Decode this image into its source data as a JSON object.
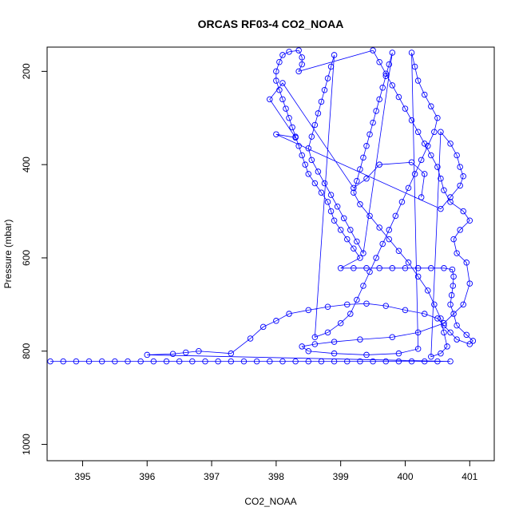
{
  "chart_data": {
    "type": "scatter",
    "title": "ORCAS RF03-4 CO2_NOAA",
    "xlabel": "CO2_NOAA",
    "ylabel": "Pressure (mbar)",
    "xlim": [
      394.45,
      401.38
    ],
    "ylim": [
      1035,
      148
    ],
    "y_reversed": true,
    "x_ticks": [
      "395",
      "396",
      "397",
      "398",
      "399",
      "400",
      "401"
    ],
    "y_ticks": [
      "200",
      "400",
      "600",
      "800",
      "1000"
    ],
    "color": "#0000ff",
    "marker": "open-circle",
    "connected_by_line": true,
    "grid": false,
    "series": [
      {
        "points": [
          [
            394.5,
            822
          ],
          [
            394.7,
            822
          ],
          [
            394.9,
            822
          ],
          [
            395.1,
            822
          ],
          [
            395.3,
            822
          ],
          [
            395.5,
            822
          ],
          [
            395.7,
            822
          ],
          [
            395.9,
            822
          ],
          [
            396.1,
            822
          ],
          [
            396.3,
            822
          ],
          [
            396.5,
            822
          ],
          [
            396.7,
            822
          ],
          [
            396.9,
            822
          ],
          [
            397.1,
            822
          ],
          [
            397.3,
            822
          ],
          [
            397.5,
            822
          ],
          [
            397.7,
            822
          ],
          [
            397.9,
            822
          ],
          [
            398.1,
            822
          ],
          [
            398.3,
            822
          ],
          [
            398.5,
            822
          ],
          [
            398.7,
            822
          ],
          [
            398.9,
            822
          ],
          [
            399.1,
            822
          ],
          [
            399.3,
            822
          ],
          [
            399.5,
            822
          ],
          [
            399.7,
            822
          ],
          [
            399.9,
            822
          ],
          [
            400.1,
            822
          ],
          [
            400.3,
            822
          ],
          [
            400.5,
            822
          ],
          [
            400.7,
            822
          ],
          [
            396.0,
            808
          ],
          [
            396.4,
            806
          ],
          [
            396.6,
            803
          ],
          [
            396.8,
            800
          ],
          [
            397.3,
            805
          ],
          [
            397.6,
            773
          ],
          [
            397.8,
            748
          ],
          [
            398.0,
            735
          ],
          [
            398.2,
            720
          ],
          [
            398.5,
            712
          ],
          [
            398.8,
            705
          ],
          [
            399.1,
            700
          ],
          [
            399.4,
            698
          ],
          [
            399.7,
            703
          ],
          [
            400.0,
            712
          ],
          [
            400.3,
            720
          ],
          [
            400.5,
            730
          ],
          [
            400.6,
            745
          ],
          [
            400.7,
            760
          ],
          [
            400.8,
            775
          ],
          [
            401.0,
            785
          ],
          [
            401.05,
            778
          ],
          [
            400.95,
            765
          ],
          [
            400.8,
            745
          ],
          [
            400.75,
            720
          ],
          [
            400.7,
            700
          ],
          [
            400.72,
            680
          ],
          [
            400.74,
            660
          ],
          [
            400.75,
            640
          ],
          [
            400.73,
            625
          ],
          [
            400.6,
            622
          ],
          [
            400.4,
            622
          ],
          [
            400.2,
            622
          ],
          [
            400.0,
            622
          ],
          [
            399.8,
            622
          ],
          [
            399.6,
            622
          ],
          [
            399.4,
            622
          ],
          [
            399.2,
            622
          ],
          [
            399.0,
            622
          ],
          [
            399.3,
            600
          ],
          [
            399.2,
            580
          ],
          [
            399.1,
            560
          ],
          [
            399.0,
            540
          ],
          [
            398.9,
            520
          ],
          [
            398.85,
            500
          ],
          [
            398.8,
            480
          ],
          [
            398.7,
            460
          ],
          [
            398.6,
            440
          ],
          [
            398.5,
            420
          ],
          [
            398.45,
            400
          ],
          [
            398.4,
            380
          ],
          [
            398.35,
            360
          ],
          [
            398.3,
            340
          ],
          [
            398.25,
            320
          ],
          [
            398.2,
            300
          ],
          [
            398.15,
            280
          ],
          [
            398.1,
            260
          ],
          [
            398.05,
            240
          ],
          [
            398.0,
            220
          ],
          [
            398.0,
            200
          ],
          [
            398.05,
            180
          ],
          [
            398.1,
            165
          ],
          [
            398.2,
            158
          ],
          [
            398.35,
            155
          ],
          [
            398.4,
            170
          ],
          [
            398.4,
            185
          ],
          [
            398.35,
            200
          ],
          [
            399.5,
            155
          ],
          [
            399.6,
            180
          ],
          [
            399.7,
            205
          ],
          [
            399.8,
            230
          ],
          [
            399.9,
            255
          ],
          [
            400.0,
            280
          ],
          [
            400.1,
            305
          ],
          [
            400.2,
            330
          ],
          [
            400.3,
            355
          ],
          [
            400.4,
            380
          ],
          [
            400.5,
            405
          ],
          [
            400.55,
            430
          ],
          [
            400.6,
            455
          ],
          [
            400.7,
            480
          ],
          [
            400.9,
            500
          ],
          [
            401.0,
            520
          ],
          [
            400.85,
            540
          ],
          [
            400.75,
            560
          ],
          [
            400.8,
            590
          ],
          [
            400.95,
            610
          ],
          [
            401.0,
            655
          ],
          [
            400.9,
            700
          ],
          [
            400.6,
            740
          ],
          [
            400.2,
            760
          ],
          [
            399.8,
            770
          ],
          [
            399.3,
            775
          ],
          [
            398.9,
            780
          ],
          [
            398.6,
            785
          ],
          [
            398.4,
            790
          ],
          [
            398.5,
            800
          ],
          [
            398.9,
            805
          ],
          [
            399.4,
            808
          ],
          [
            399.9,
            805
          ],
          [
            400.2,
            795
          ],
          [
            400.1,
            160
          ],
          [
            400.15,
            190
          ],
          [
            400.2,
            220
          ],
          [
            400.3,
            250
          ],
          [
            400.4,
            275
          ],
          [
            400.5,
            300
          ],
          [
            400.45,
            330
          ],
          [
            400.35,
            360
          ],
          [
            400.25,
            390
          ],
          [
            400.15,
            420
          ],
          [
            400.05,
            450
          ],
          [
            399.95,
            480
          ],
          [
            399.85,
            510
          ],
          [
            399.75,
            540
          ],
          [
            399.65,
            570
          ],
          [
            399.55,
            600
          ],
          [
            399.45,
            630
          ],
          [
            399.35,
            660
          ],
          [
            399.25,
            690
          ],
          [
            399.15,
            720
          ],
          [
            399.0,
            740
          ],
          [
            398.8,
            760
          ],
          [
            398.6,
            770
          ],
          [
            398.9,
            165
          ],
          [
            398.85,
            190
          ],
          [
            398.8,
            215
          ],
          [
            398.75,
            240
          ],
          [
            398.7,
            265
          ],
          [
            398.65,
            290
          ],
          [
            398.6,
            315
          ],
          [
            398.55,
            340
          ],
          [
            398.5,
            365
          ],
          [
            398.55,
            390
          ],
          [
            398.65,
            415
          ],
          [
            398.75,
            440
          ],
          [
            398.85,
            465
          ],
          [
            398.95,
            490
          ],
          [
            399.05,
            515
          ],
          [
            399.15,
            540
          ],
          [
            399.25,
            565
          ],
          [
            399.35,
            590
          ],
          [
            399.8,
            160
          ],
          [
            399.75,
            185
          ],
          [
            399.7,
            210
          ],
          [
            399.65,
            235
          ],
          [
            399.6,
            260
          ],
          [
            399.55,
            285
          ],
          [
            399.5,
            310
          ],
          [
            399.45,
            335
          ],
          [
            399.4,
            360
          ],
          [
            399.35,
            385
          ],
          [
            399.3,
            410
          ],
          [
            399.25,
            435
          ],
          [
            399.2,
            460
          ],
          [
            399.3,
            485
          ],
          [
            399.45,
            510
          ],
          [
            399.6,
            535
          ],
          [
            399.75,
            560
          ],
          [
            399.9,
            585
          ],
          [
            400.05,
            610
          ],
          [
            400.2,
            640
          ],
          [
            400.35,
            670
          ],
          [
            400.45,
            700
          ],
          [
            400.55,
            730
          ],
          [
            400.6,
            760
          ],
          [
            400.65,
            790
          ],
          [
            400.55,
            805
          ],
          [
            400.4,
            812
          ],
          [
            400.55,
            330
          ],
          [
            400.7,
            355
          ],
          [
            400.8,
            380
          ],
          [
            400.85,
            405
          ],
          [
            400.9,
            425
          ],
          [
            400.85,
            445
          ],
          [
            400.7,
            470
          ],
          [
            400.55,
            495
          ],
          [
            398.0,
            335
          ],
          [
            398.3,
            342
          ],
          [
            397.9,
            260
          ],
          [
            398.1,
            225
          ],
          [
            399.2,
            450
          ],
          [
            399.4,
            430
          ],
          [
            399.6,
            400
          ],
          [
            400.1,
            395
          ],
          [
            400.3,
            420
          ],
          [
            400.25,
            470
          ]
        ]
      }
    ]
  }
}
